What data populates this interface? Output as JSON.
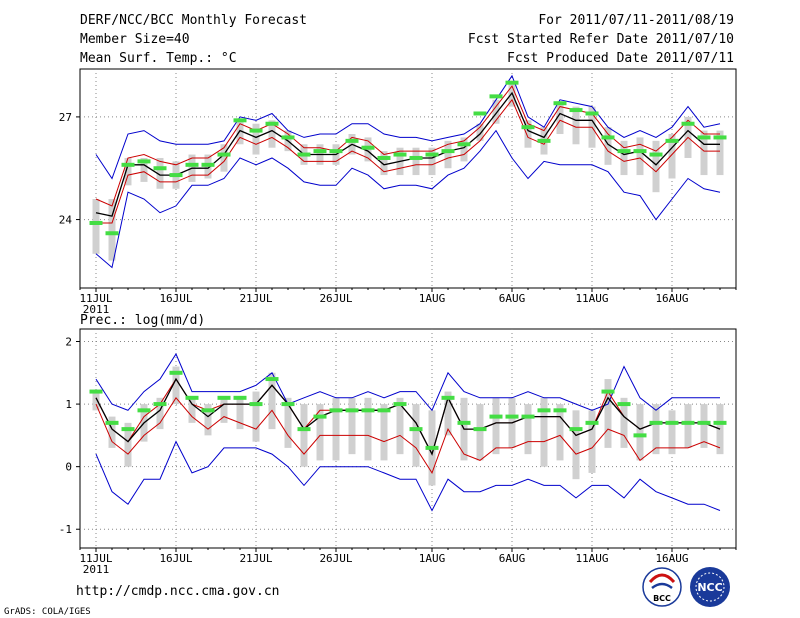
{
  "header": {
    "title": "DERF/NCC/BCC Monthly Forecast",
    "member_size": "Member Size=40",
    "variable1": "Mean Surf. Temp.: °C",
    "period": "For 2011/07/11-2011/08/19",
    "fcst_started": "Fcst Started Refer Date 2011/07/10",
    "fcst_produced": "Fcst Produced Date 2011/07/11"
  },
  "footer": {
    "url": "http://cmdp.ncc.cma.gov.cn",
    "credit": "GrADS: COLA/IGES",
    "logo_bcc": "BCC",
    "logo_ncc": "NCC"
  },
  "colors": {
    "ensemble_mean": "#000000",
    "spread_upper": "#0000cc",
    "spread_lower": "#0000cc",
    "inner_band": "#cc0000",
    "member_box": "#d0d0d0",
    "median_marker": "#44dd44",
    "grid": "#888888"
  },
  "chart_data": [
    {
      "type": "line",
      "title": "Mean Surf. Temp.: °C",
      "xlabel": "",
      "ylabel": "",
      "x_tick_labels": [
        "11JUL",
        "16JUL",
        "21JUL",
        "26JUL",
        "1AUG",
        "6AUG",
        "11AUG",
        "16AUG"
      ],
      "x_tick_days": [
        1,
        6,
        11,
        16,
        22,
        27,
        32,
        37
      ],
      "year_label": "2011",
      "xlim": [
        0,
        41
      ],
      "ylim": [
        22,
        28.4
      ],
      "y_ticks": [
        24,
        27
      ],
      "x": [
        1,
        2,
        3,
        4,
        5,
        6,
        7,
        8,
        9,
        10,
        11,
        12,
        13,
        14,
        15,
        16,
        17,
        18,
        19,
        20,
        21,
        22,
        23,
        24,
        25,
        26,
        27,
        28,
        29,
        30,
        31,
        32,
        33,
        34,
        35,
        36,
        37,
        38,
        39,
        40
      ],
      "series": [
        {
          "name": "max",
          "values": [
            25.9,
            25.2,
            26.5,
            26.6,
            26.3,
            26.2,
            26.2,
            26.2,
            26.3,
            27.0,
            26.9,
            27.1,
            26.6,
            26.4,
            26.5,
            26.5,
            26.8,
            26.8,
            26.5,
            26.4,
            26.4,
            26.3,
            26.4,
            26.5,
            26.8,
            27.5,
            28.2,
            27.0,
            26.7,
            27.5,
            27.4,
            27.3,
            26.7,
            26.4,
            26.6,
            26.4,
            26.7,
            27.3,
            26.7,
            26.8
          ]
        },
        {
          "name": "upper",
          "values": [
            24.6,
            24.4,
            25.8,
            25.9,
            25.7,
            25.6,
            25.8,
            25.8,
            26.1,
            26.8,
            26.6,
            26.8,
            26.5,
            26.1,
            26.1,
            26.0,
            26.4,
            26.3,
            25.9,
            26.0,
            26.0,
            26.0,
            26.2,
            26.3,
            26.7,
            27.3,
            27.9,
            26.8,
            26.6,
            27.3,
            27.2,
            27.1,
            26.5,
            26.1,
            26.2,
            26.0,
            26.4,
            26.9,
            26.5,
            26.5
          ]
        },
        {
          "name": "mean",
          "values": [
            24.2,
            24.1,
            25.6,
            25.6,
            25.3,
            25.3,
            25.5,
            25.5,
            25.9,
            26.6,
            26.4,
            26.6,
            26.3,
            25.9,
            25.9,
            25.9,
            26.2,
            26.0,
            25.6,
            25.7,
            25.8,
            25.8,
            26.0,
            26.1,
            26.5,
            27.1,
            27.7,
            26.6,
            26.4,
            27.1,
            26.9,
            26.9,
            26.2,
            25.9,
            26.0,
            25.6,
            26.1,
            26.6,
            26.2,
            26.2
          ]
        },
        {
          "name": "lower",
          "values": [
            23.9,
            23.9,
            25.3,
            25.4,
            25.1,
            25.1,
            25.3,
            25.3,
            25.7,
            26.4,
            26.2,
            26.4,
            26.1,
            25.7,
            25.7,
            25.7,
            26.0,
            25.8,
            25.4,
            25.5,
            25.6,
            25.6,
            25.8,
            25.9,
            26.3,
            26.9,
            27.5,
            26.4,
            26.2,
            26.9,
            26.7,
            26.7,
            26.0,
            25.7,
            25.8,
            25.4,
            25.9,
            26.4,
            26.0,
            26.0
          ]
        },
        {
          "name": "min",
          "values": [
            23.0,
            22.6,
            24.8,
            24.6,
            24.2,
            24.4,
            25.0,
            25.0,
            25.2,
            25.8,
            25.6,
            25.8,
            25.5,
            25.1,
            25.0,
            25.0,
            25.5,
            25.3,
            24.9,
            25.0,
            25.0,
            24.9,
            25.3,
            25.5,
            26.0,
            26.6,
            25.8,
            25.2,
            25.7,
            25.6,
            25.6,
            25.6,
            25.4,
            24.8,
            24.7,
            24.0,
            24.6,
            25.2,
            24.9,
            24.8
          ]
        }
      ],
      "median": [
        23.9,
        23.6,
        25.6,
        25.7,
        25.5,
        25.3,
        25.6,
        25.6,
        25.9,
        26.9,
        26.6,
        26.8,
        26.4,
        25.9,
        26.0,
        26.0,
        26.3,
        26.1,
        25.8,
        25.9,
        25.8,
        25.9,
        26.0,
        26.2,
        27.1,
        27.6,
        28.0,
        26.7,
        26.3,
        27.4,
        27.2,
        27.1,
        26.4,
        26.0,
        26.0,
        25.9,
        26.3,
        26.8,
        26.4,
        26.4
      ],
      "box_low": [
        23.0,
        22.8,
        25.0,
        25.1,
        24.9,
        24.9,
        25.1,
        25.2,
        25.4,
        26.2,
        25.9,
        26.1,
        26.0,
        25.6,
        25.6,
        25.6,
        25.9,
        25.7,
        25.3,
        25.3,
        25.3,
        25.3,
        25.5,
        25.7,
        26.3,
        26.8,
        27.3,
        26.1,
        25.9,
        26.5,
        26.2,
        26.1,
        25.6,
        25.3,
        25.3,
        24.8,
        25.2,
        25.8,
        25.3,
        25.3
      ],
      "box_high": [
        24.6,
        24.6,
        25.8,
        25.8,
        25.8,
        25.7,
        25.9,
        25.9,
        26.2,
        26.9,
        26.8,
        26.9,
        26.6,
        26.2,
        26.2,
        26.2,
        26.5,
        26.4,
        26.0,
        26.1,
        26.1,
        26.1,
        26.3,
        26.4,
        26.8,
        27.5,
        28.0,
        26.9,
        26.7,
        27.4,
        27.3,
        27.3,
        26.7,
        26.3,
        26.4,
        26.3,
        26.5,
        27.0,
        26.6,
        26.6
      ]
    },
    {
      "type": "line",
      "title": "Prec.: log(mm/d)",
      "xlabel": "",
      "ylabel": "",
      "x_tick_labels": [
        "11JUL",
        "16JUL",
        "21JUL",
        "26JUL",
        "1AUG",
        "6AUG",
        "11AUG",
        "16AUG"
      ],
      "x_tick_days": [
        1,
        6,
        11,
        16,
        22,
        27,
        32,
        37
      ],
      "year_label": "2011",
      "xlim": [
        0,
        41
      ],
      "ylim": [
        -1.3,
        2.2
      ],
      "y_ticks": [
        -1,
        0,
        1,
        2
      ],
      "x": [
        1,
        2,
        3,
        4,
        5,
        6,
        7,
        8,
        9,
        10,
        11,
        12,
        13,
        14,
        15,
        16,
        17,
        18,
        19,
        20,
        21,
        22,
        23,
        24,
        25,
        26,
        27,
        28,
        29,
        30,
        31,
        32,
        33,
        34,
        35,
        36,
        37,
        38,
        39,
        40
      ],
      "series": [
        {
          "name": "max",
          "values": [
            1.4,
            1.0,
            0.9,
            1.2,
            1.4,
            1.8,
            1.2,
            1.2,
            1.2,
            1.2,
            1.3,
            1.5,
            1.0,
            1.1,
            1.2,
            1.1,
            1.1,
            1.2,
            1.1,
            1.2,
            1.2,
            0.9,
            1.5,
            1.2,
            1.1,
            1.1,
            1.1,
            1.2,
            1.1,
            1.1,
            1.0,
            0.9,
            1.0,
            1.6,
            1.1,
            0.9,
            1.1,
            1.1,
            1.1,
            1.1
          ]
        },
        {
          "name": "upper",
          "values": [
            1.1,
            0.6,
            0.4,
            0.8,
            1.0,
            1.4,
            1.0,
            0.9,
            1.0,
            1.0,
            1.0,
            1.3,
            1.0,
            0.6,
            0.9,
            0.9,
            0.9,
            0.9,
            0.9,
            1.0,
            0.7,
            0.2,
            1.1,
            0.6,
            0.6,
            0.7,
            0.7,
            0.8,
            0.8,
            0.8,
            0.5,
            0.6,
            1.2,
            0.8,
            0.6,
            0.7,
            0.7,
            0.7,
            0.7,
            0.6
          ]
        },
        {
          "name": "mean",
          "values": [
            1.1,
            0.6,
            0.4,
            0.7,
            0.9,
            1.4,
            1.0,
            0.8,
            1.0,
            1.0,
            1.0,
            1.3,
            1.0,
            0.6,
            0.8,
            0.9,
            0.9,
            0.9,
            0.9,
            1.0,
            0.7,
            0.2,
            1.1,
            0.6,
            0.6,
            0.7,
            0.7,
            0.8,
            0.8,
            0.8,
            0.5,
            0.6,
            1.1,
            0.8,
            0.6,
            0.7,
            0.7,
            0.7,
            0.7,
            0.6
          ]
        },
        {
          "name": "lower",
          "values": [
            1.0,
            0.4,
            0.2,
            0.5,
            0.7,
            1.1,
            0.8,
            0.6,
            0.8,
            0.7,
            0.6,
            0.9,
            0.5,
            0.2,
            0.5,
            0.5,
            0.5,
            0.5,
            0.4,
            0.5,
            0.3,
            -0.1,
            0.6,
            0.2,
            0.1,
            0.3,
            0.3,
            0.4,
            0.4,
            0.5,
            0.2,
            0.3,
            0.6,
            0.5,
            0.1,
            0.3,
            0.3,
            0.3,
            0.4,
            0.3
          ]
        },
        {
          "name": "min",
          "values": [
            0.2,
            -0.4,
            -0.6,
            -0.2,
            -0.2,
            0.4,
            -0.1,
            0.0,
            0.3,
            0.3,
            0.3,
            0.2,
            0.0,
            -0.3,
            0.0,
            0.0,
            0.0,
            0.0,
            -0.1,
            -0.2,
            -0.2,
            -0.7,
            -0.2,
            -0.4,
            -0.4,
            -0.3,
            -0.3,
            -0.2,
            -0.3,
            -0.3,
            -0.5,
            -0.3,
            -0.3,
            -0.5,
            -0.2,
            -0.4,
            -0.5,
            -0.6,
            -0.6,
            -0.7
          ]
        }
      ],
      "median": [
        1.2,
        0.7,
        0.6,
        0.9,
        1.0,
        1.5,
        1.1,
        0.9,
        1.1,
        1.1,
        1.0,
        1.4,
        1.0,
        0.6,
        0.8,
        0.9,
        0.9,
        0.9,
        0.9,
        1.0,
        0.6,
        0.3,
        1.1,
        0.7,
        0.6,
        0.8,
        0.8,
        0.8,
        0.9,
        0.9,
        0.6,
        0.7,
        1.2,
        1.0,
        0.5,
        0.7,
        0.7,
        0.7,
        0.7,
        0.7
      ],
      "box_low": [
        0.9,
        0.3,
        0.0,
        0.4,
        0.6,
        1.0,
        0.7,
        0.5,
        0.7,
        0.6,
        0.4,
        0.6,
        0.3,
        0.0,
        0.1,
        0.1,
        0.2,
        0.1,
        0.1,
        0.2,
        0.0,
        -0.3,
        0.5,
        0.1,
        0.1,
        0.2,
        0.3,
        0.2,
        0.0,
        0.1,
        -0.2,
        -0.1,
        0.3,
        0.3,
        0.1,
        0.2,
        0.2,
        0.3,
        0.3,
        0.2
      ],
      "box_high": [
        1.2,
        0.8,
        0.7,
        1.0,
        1.1,
        1.6,
        1.1,
        1.0,
        1.1,
        1.1,
        1.2,
        1.5,
        1.1,
        1.0,
        1.0,
        1.1,
        1.1,
        1.1,
        1.0,
        1.1,
        1.0,
        0.9,
        1.2,
        1.1,
        1.0,
        1.1,
        1.1,
        1.0,
        1.1,
        1.0,
        0.9,
        0.9,
        1.4,
        1.1,
        1.0,
        1.0,
        0.9,
        1.0,
        1.0,
        1.0
      ]
    }
  ]
}
